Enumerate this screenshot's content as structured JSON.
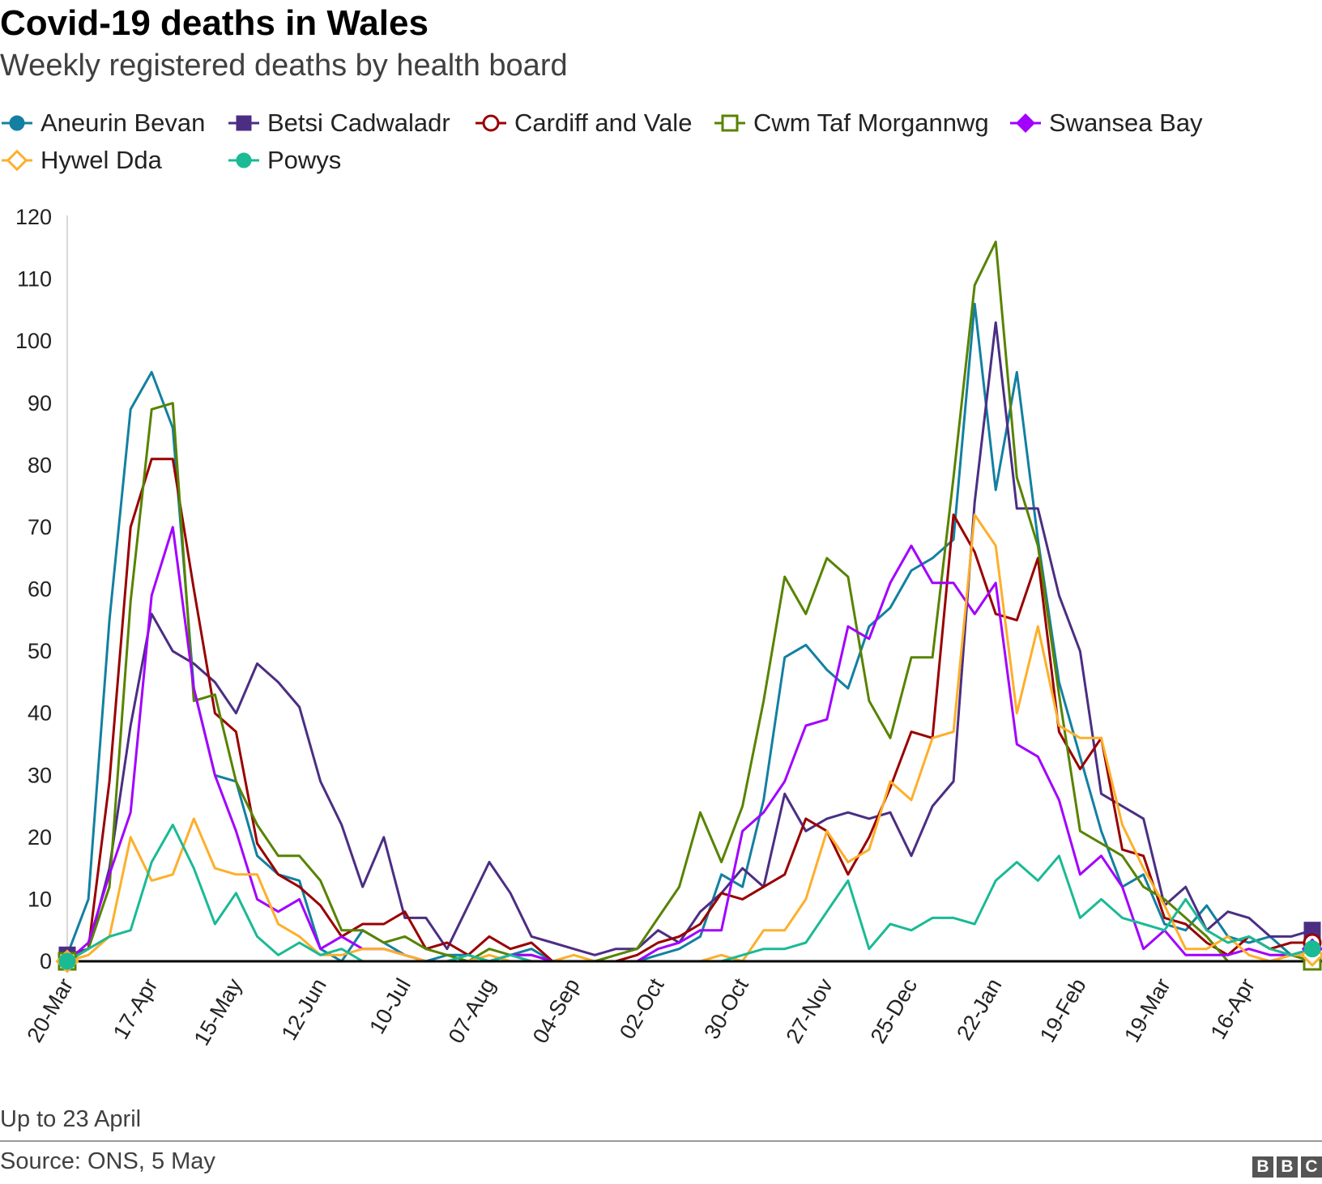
{
  "header": {
    "title": "Covid-19 deaths in Wales",
    "subtitle": "Weekly registered deaths by health board"
  },
  "footer": {
    "note": "Up to 23 April",
    "source": "Source: ONS, 5 May",
    "logo_letters": [
      "B",
      "B",
      "C"
    ]
  },
  "chart_data": {
    "type": "line",
    "title": "Covid-19 deaths in Wales",
    "subtitle": "Weekly registered deaths by health board",
    "xlabel": "",
    "ylabel": "",
    "ylim": [
      0,
      120
    ],
    "y_ticks": [
      0,
      10,
      20,
      30,
      40,
      50,
      60,
      70,
      80,
      90,
      100,
      110,
      120
    ],
    "x_tick_labels": [
      "20-Mar",
      "17-Apr",
      "15-May",
      "12-Jun",
      "10-Jul",
      "07-Aug",
      "04-Sep",
      "02-Oct",
      "30-Oct",
      "27-Nov",
      "25-Dec",
      "22-Jan",
      "19-Feb",
      "19-Mar",
      "16-Apr"
    ],
    "x_tick_week_index": [
      0,
      4,
      8,
      12,
      16,
      20,
      24,
      28,
      32,
      36,
      40,
      44,
      48,
      52,
      56
    ],
    "legend_position": "top",
    "grid": false,
    "x_weeks_first": "20-Mar",
    "x_weeks_last": "23-Apr",
    "series": [
      {
        "name": "Aneurin Bevan",
        "color": "#1380a1",
        "marker": "circle-filled",
        "values": [
          1,
          10,
          55,
          89,
          95,
          86,
          44,
          30,
          29,
          17,
          14,
          13,
          2,
          0,
          5,
          3,
          1,
          0,
          1,
          1,
          0,
          1,
          2,
          0,
          0,
          0,
          0,
          0,
          1,
          2,
          4,
          14,
          12,
          26,
          49,
          51,
          47,
          44,
          54,
          57,
          63,
          65,
          68,
          106,
          76,
          95,
          68,
          45,
          33,
          21,
          12,
          14,
          6,
          5,
          9,
          4,
          3,
          4,
          1,
          2
        ]
      },
      {
        "name": "Betsi Cadwaladr",
        "color": "#4b2e83",
        "marker": "square-filled",
        "values": [
          1,
          2,
          15,
          38,
          56,
          50,
          48,
          45,
          40,
          48,
          45,
          41,
          29,
          22,
          12,
          20,
          7,
          7,
          2,
          9,
          16,
          11,
          4,
          3,
          2,
          1,
          2,
          2,
          5,
          3,
          8,
          11,
          15,
          12,
          27,
          21,
          23,
          24,
          23,
          24,
          17,
          25,
          29,
          74,
          103,
          73,
          73,
          59,
          50,
          27,
          25,
          23,
          9,
          12,
          5,
          8,
          7,
          4,
          4,
          5
        ]
      },
      {
        "name": "Cardiff and Vale",
        "color": "#990000",
        "marker": "circle-open",
        "values": [
          0,
          2,
          29,
          70,
          81,
          81,
          60,
          40,
          37,
          19,
          14,
          12,
          9,
          4,
          6,
          6,
          8,
          2,
          3,
          1,
          4,
          2,
          3,
          0,
          0,
          0,
          0,
          1,
          3,
          4,
          6,
          11,
          10,
          12,
          14,
          23,
          21,
          14,
          20,
          28,
          37,
          36,
          72,
          66,
          56,
          55,
          65,
          37,
          31,
          36,
          18,
          17,
          7,
          6,
          3,
          1,
          4,
          2,
          3,
          3
        ]
      },
      {
        "name": "Cwm Taf Morgannwg",
        "color": "#588300",
        "marker": "square-open",
        "values": [
          0,
          2,
          12,
          58,
          89,
          90,
          42,
          43,
          29,
          22,
          17,
          17,
          13,
          5,
          5,
          3,
          4,
          2,
          1,
          0,
          2,
          1,
          1,
          0,
          0,
          0,
          1,
          2,
          7,
          12,
          24,
          16,
          25,
          42,
          62,
          56,
          65,
          62,
          42,
          36,
          49,
          49,
          78,
          109,
          116,
          78,
          67,
          43,
          21,
          19,
          17,
          12,
          10,
          7,
          4,
          0,
          0,
          0,
          1,
          0
        ]
      },
      {
        "name": "Swansea Bay",
        "color": "#a200ff",
        "marker": "diamond-filled",
        "values": [
          0,
          3,
          14,
          24,
          59,
          70,
          44,
          30,
          21,
          10,
          8,
          10,
          2,
          4,
          2,
          2,
          1,
          0,
          0,
          0,
          0,
          1,
          1,
          0,
          0,
          0,
          0,
          0,
          2,
          3,
          5,
          5,
          21,
          24,
          29,
          38,
          39,
          54,
          52,
          61,
          67,
          61,
          61,
          56,
          61,
          35,
          33,
          26,
          14,
          17,
          12,
          2,
          5,
          1,
          1,
          1,
          2,
          1,
          1,
          2
        ]
      },
      {
        "name": "Hywel Dda",
        "color": "#fdaf2b",
        "marker": "diamond-open",
        "values": [
          0,
          1,
          4,
          20,
          13,
          14,
          23,
          15,
          14,
          14,
          6,
          4,
          1,
          1,
          2,
          2,
          1,
          0,
          0,
          0,
          1,
          0,
          0,
          0,
          1,
          0,
          0,
          0,
          0,
          0,
          0,
          1,
          0,
          5,
          5,
          10,
          21,
          16,
          18,
          29,
          26,
          36,
          37,
          72,
          67,
          40,
          54,
          38,
          36,
          36,
          22,
          15,
          9,
          2,
          2,
          4,
          1,
          0,
          1,
          1
        ]
      },
      {
        "name": "Powys",
        "color": "#1aba94",
        "marker": "circle-filled",
        "values": [
          0,
          2,
          4,
          5,
          16,
          22,
          15,
          6,
          11,
          4,
          1,
          3,
          1,
          2,
          0,
          0,
          0,
          0,
          0,
          1,
          0,
          1,
          0,
          0,
          0,
          0,
          0,
          0,
          0,
          0,
          0,
          0,
          1,
          2,
          2,
          3,
          8,
          13,
          2,
          6,
          5,
          7,
          7,
          6,
          13,
          16,
          13,
          17,
          7,
          10,
          7,
          6,
          5,
          10,
          5,
          3,
          4,
          2,
          1,
          2
        ]
      }
    ]
  }
}
